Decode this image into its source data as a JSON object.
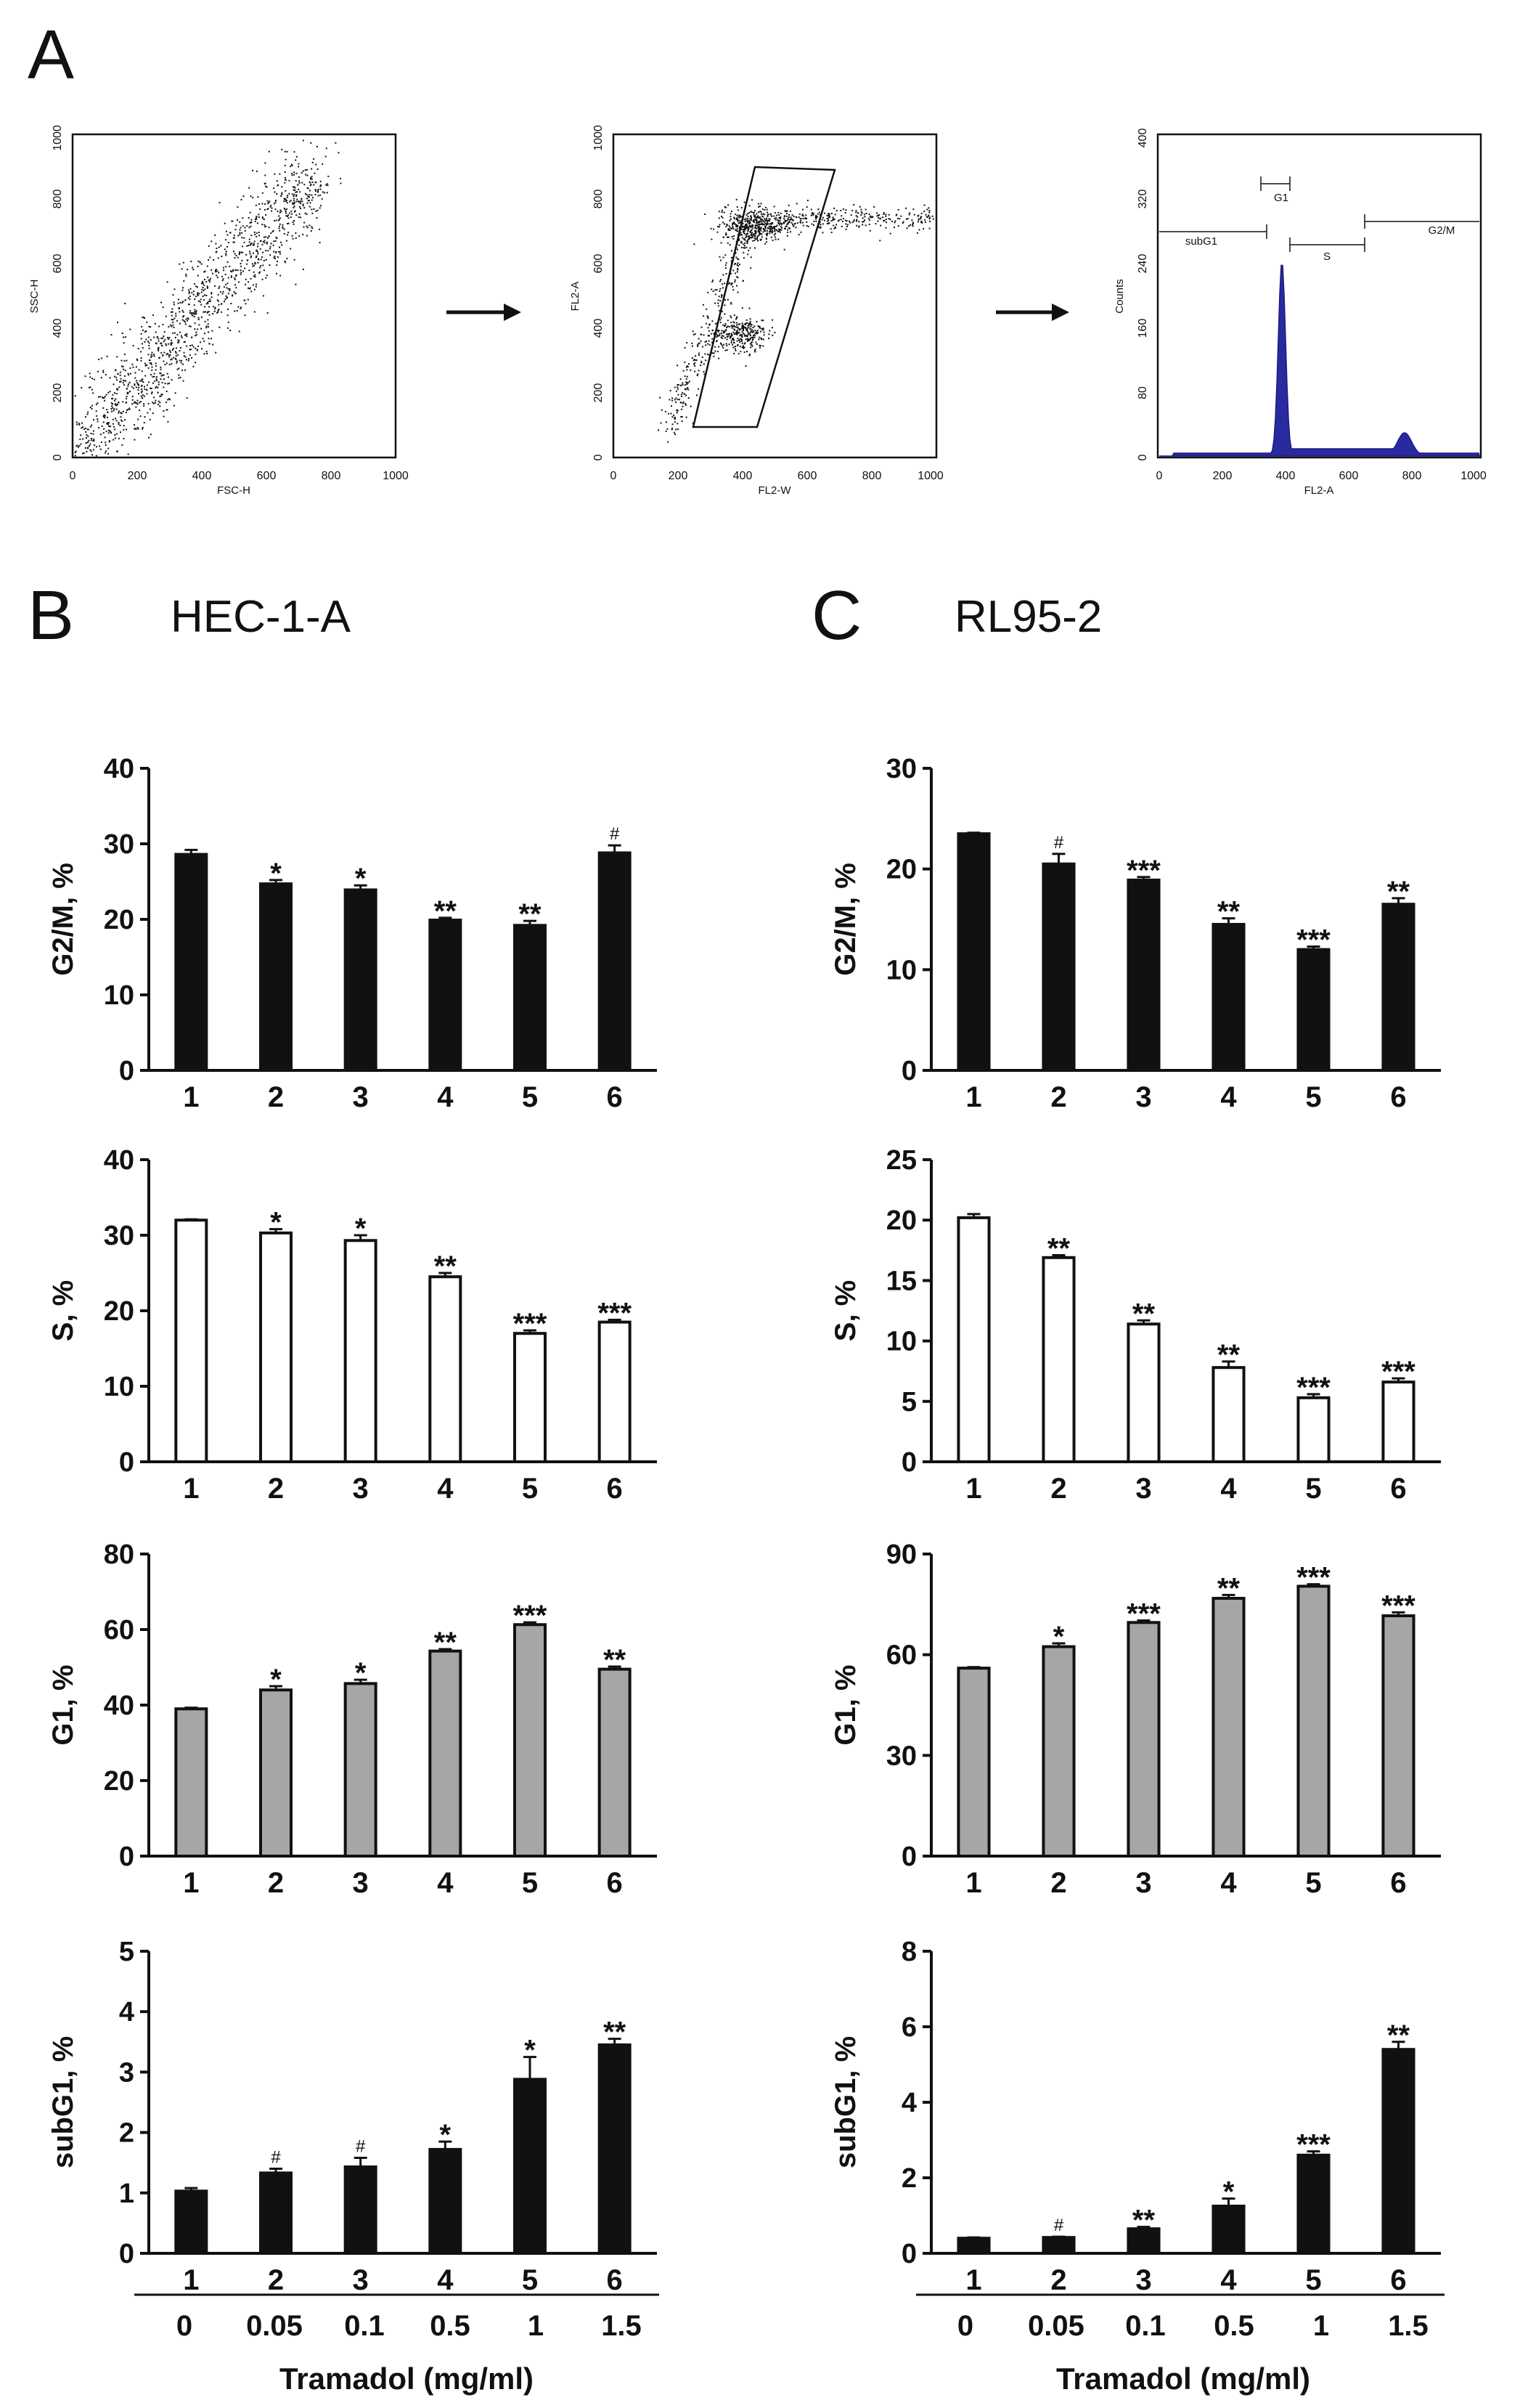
{
  "panel_letters": {
    "a": "A",
    "b": "B",
    "c": "C"
  },
  "cell_lines": {
    "b": "HEC-1-A",
    "c": "RL95-2"
  },
  "x_axis": {
    "title": "Tramadol (mg/ml)",
    "groups": [
      "1",
      "2",
      "3",
      "4",
      "5",
      "6"
    ],
    "doses": [
      "0",
      "0.05",
      "0.1",
      "0.5",
      "1",
      "1.5"
    ]
  },
  "flow": {
    "p1": {
      "xlabel": "FSC-H",
      "ylabel": "SSC-H",
      "xticks": [
        "0",
        "200",
        "400",
        "600",
        "800",
        "1000"
      ],
      "yticks": [
        "0",
        "200",
        "400",
        "600",
        "800",
        "1000"
      ]
    },
    "p2": {
      "xlabel": "FL2-W",
      "ylabel": "FL2-A",
      "xticks": [
        "0",
        "200",
        "400",
        "600",
        "800",
        "1000"
      ],
      "yticks": [
        "0",
        "200",
        "400",
        "600",
        "800",
        "1000"
      ]
    },
    "p3": {
      "xlabel": "FL2-A",
      "ylabel": "Counts",
      "xticks": [
        "0",
        "200",
        "400",
        "600",
        "800",
        "1000"
      ],
      "yticks": [
        "0",
        "80",
        "160",
        "240",
        "320",
        "400"
      ],
      "gates": [
        "subG1",
        "G1",
        "S",
        "G2/M"
      ]
    }
  },
  "chart_data": [
    {
      "id": "b_g2m",
      "type": "bar",
      "cell_line": "HEC-1-A",
      "ylabel": "G2/M, %",
      "ylim": [
        0,
        40
      ],
      "yticks": [
        0,
        10,
        20,
        30,
        40
      ],
      "fill": "#111111",
      "categories": [
        "1",
        "2",
        "3",
        "4",
        "5",
        "6"
      ],
      "values": [
        28.6,
        24.7,
        23.9,
        19.9,
        19.2,
        28.8
      ],
      "errors": [
        0.6,
        0.5,
        0.6,
        0.3,
        0.6,
        1.0
      ],
      "annotations": [
        "",
        "*",
        "*",
        "**",
        "**",
        "#"
      ]
    },
    {
      "id": "c_g2m",
      "type": "bar",
      "cell_line": "RL95-2",
      "ylabel": "G2/M, %",
      "ylim": [
        0,
        30
      ],
      "yticks": [
        0,
        10,
        20,
        30
      ],
      "fill": "#111111",
      "categories": [
        "1",
        "2",
        "3",
        "4",
        "5",
        "6"
      ],
      "values": [
        23.5,
        20.5,
        18.9,
        14.5,
        12.0,
        16.5
      ],
      "errors": [
        0.1,
        1.0,
        0.3,
        0.6,
        0.3,
        0.6
      ],
      "annotations": [
        "",
        "#",
        "***",
        "**",
        "***",
        "**"
      ]
    },
    {
      "id": "b_s",
      "type": "bar",
      "cell_line": "HEC-1-A",
      "ylabel": "S, %",
      "ylim": [
        0,
        40
      ],
      "yticks": [
        0,
        10,
        20,
        30,
        40
      ],
      "fill": "#ffffff",
      "categories": [
        "1",
        "2",
        "3",
        "4",
        "5",
        "6"
      ],
      "values": [
        32.0,
        30.3,
        29.3,
        24.5,
        17.0,
        18.5
      ],
      "errors": [
        0.1,
        0.5,
        0.7,
        0.5,
        0.4,
        0.3
      ],
      "annotations": [
        "",
        "*",
        "*",
        "**",
        "***",
        "***"
      ]
    },
    {
      "id": "c_s",
      "type": "bar",
      "cell_line": "RL95-2",
      "ylabel": "S, %",
      "ylim": [
        0,
        25
      ],
      "yticks": [
        0,
        5,
        10,
        15,
        20,
        25
      ],
      "fill": "#ffffff",
      "categories": [
        "1",
        "2",
        "3",
        "4",
        "5",
        "6"
      ],
      "values": [
        20.2,
        16.9,
        11.4,
        7.8,
        5.3,
        6.6
      ],
      "errors": [
        0.3,
        0.2,
        0.3,
        0.5,
        0.3,
        0.3
      ],
      "annotations": [
        "",
        "**",
        "**",
        "**",
        "***",
        "***"
      ]
    },
    {
      "id": "b_g1",
      "type": "bar",
      "cell_line": "HEC-1-A",
      "ylabel": "G1, %",
      "ylim": [
        0,
        80
      ],
      "yticks": [
        0,
        20,
        40,
        60,
        80
      ],
      "fill": "#a6a6a6",
      "categories": [
        "1",
        "2",
        "3",
        "4",
        "5",
        "6"
      ],
      "values": [
        39.0,
        44.0,
        45.7,
        54.3,
        61.3,
        49.5
      ],
      "errors": [
        0.3,
        1.0,
        1.0,
        0.5,
        0.6,
        0.7
      ],
      "annotations": [
        "",
        "*",
        "*",
        "**",
        "***",
        "**"
      ]
    },
    {
      "id": "c_g1",
      "type": "bar",
      "cell_line": "RL95-2",
      "ylabel": "G1, %",
      "ylim": [
        0,
        90
      ],
      "yticks": [
        0,
        30,
        60,
        90
      ],
      "fill": "#a6a6a6",
      "categories": [
        "1",
        "2",
        "3",
        "4",
        "5",
        "6"
      ],
      "values": [
        56.0,
        62.4,
        69.6,
        76.8,
        80.4,
        71.6
      ],
      "errors": [
        0.3,
        1.0,
        0.6,
        1.0,
        0.6,
        1.0
      ],
      "annotations": [
        "",
        "*",
        "***",
        "**",
        "***",
        "***"
      ]
    },
    {
      "id": "b_subg1",
      "type": "bar",
      "cell_line": "HEC-1-A",
      "ylabel": "subG1, %",
      "ylim": [
        0,
        5
      ],
      "yticks": [
        0,
        1,
        2,
        3,
        4,
        5
      ],
      "fill": "#111111",
      "categories": [
        "1",
        "2",
        "3",
        "4",
        "5",
        "6"
      ],
      "values": [
        1.03,
        1.33,
        1.43,
        1.72,
        2.88,
        3.45
      ],
      "errors": [
        0.05,
        0.07,
        0.15,
        0.13,
        0.37,
        0.1
      ],
      "annotations": [
        "",
        "#",
        "#",
        "*",
        "*",
        "**"
      ]
    },
    {
      "id": "c_subg1",
      "type": "bar",
      "cell_line": "RL95-2",
      "ylabel": "subG1, %",
      "ylim": [
        0,
        8
      ],
      "yticks": [
        0,
        2,
        4,
        6,
        8
      ],
      "fill": "#111111",
      "categories": [
        "1",
        "2",
        "3",
        "4",
        "5",
        "6"
      ],
      "values": [
        0.4,
        0.42,
        0.65,
        1.25,
        2.6,
        5.4
      ],
      "errors": [
        0.02,
        0.02,
        0.05,
        0.2,
        0.1,
        0.2
      ],
      "annotations": [
        "",
        "#",
        "**",
        "*",
        "***",
        "**"
      ]
    }
  ]
}
